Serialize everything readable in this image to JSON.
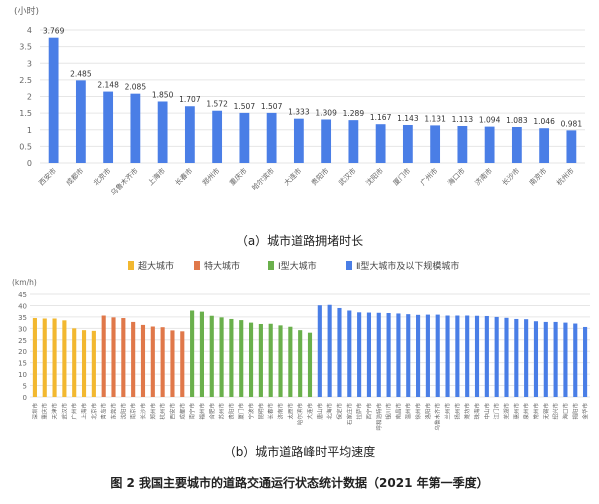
{
  "chart_data": [
    {
      "type": "bar",
      "yunit": "(小时)",
      "ylim": [
        0,
        4
      ],
      "yticks": [
        0,
        0.5,
        1,
        1.5,
        2,
        2.5,
        3,
        3.5,
        4
      ],
      "categories": [
        "西安市",
        "成都市",
        "北京市",
        "乌鲁木齐市",
        "上海市",
        "长春市",
        "郑州市",
        "重庆市",
        "哈尔滨市",
        "大连市",
        "贵阳市",
        "武汉市",
        "沈阳市",
        "厦门市",
        "广州市",
        "海口市",
        "济南市",
        "长沙市",
        "南京市",
        "杭州市"
      ],
      "values": [
        3.769,
        2.485,
        2.148,
        2.085,
        1.85,
        1.707,
        1.572,
        1.507,
        1.507,
        1.333,
        1.309,
        1.289,
        1.167,
        1.143,
        1.131,
        1.113,
        1.094,
        1.083,
        1.046,
        0.981
      ],
      "value_labels": [
        "3.769",
        "2.485",
        "2.148",
        "2.085",
        "1.850",
        "1.707",
        "1.572",
        "1.507",
        "1.507",
        "1.333",
        "1.309",
        "1.289",
        "1.167",
        "1.143",
        "1.131",
        "1.113",
        "1.094",
        "1.083",
        "1.046",
        "0.981"
      ],
      "bar_color": "#4a7ee6",
      "grid": true,
      "caption": "（a）城市道路拥堵时长"
    },
    {
      "type": "bar",
      "yunit": "(km/h)",
      "ylim": [
        0,
        45
      ],
      "yticks": [
        0,
        5,
        10,
        15,
        20,
        25,
        30,
        35,
        40,
        45
      ],
      "legend_position": "top-center",
      "groups": [
        {
          "name": "超大城市",
          "color": "#f2b830",
          "categories": [
            "深圳市",
            "重庆市",
            "天津市",
            "武汉市",
            "广州市",
            "上海市",
            "北京市"
          ],
          "values": [
            34.5,
            34.3,
            34.3,
            33.5,
            30.0,
            29.2,
            28.9
          ]
        },
        {
          "name": "特大城市",
          "color": "#e0784a",
          "categories": [
            "青岛市",
            "东莞市",
            "沈阳市",
            "南京市",
            "长沙市",
            "郑州市",
            "杭州市",
            "西安市",
            "成都市"
          ],
          "values": [
            35.6,
            34.8,
            34.5,
            32.8,
            31.5,
            30.8,
            30.5,
            29.1,
            28.7
          ]
        },
        {
          "name": "Ⅰ型大城市",
          "color": "#6ab04c",
          "categories": [
            "南宁市",
            "福州市",
            "合肥市",
            "苏州市",
            "贵阳市",
            "厦门市",
            "宁波市",
            "昆明市",
            "长春市",
            "济南市",
            "太原市",
            "哈尔滨市",
            "大连市"
          ],
          "values": [
            37.8,
            37.3,
            35.5,
            34.8,
            34.1,
            33.6,
            32.5,
            31.9,
            32.0,
            31.3,
            30.7,
            29.2,
            28.1
          ]
        },
        {
          "name": "Ⅱ型大城市及以下规模城市",
          "color": "#4a7ee6",
          "categories": [
            "唐山市",
            "北海市",
            "保定市",
            "石家庄市",
            "拉萨市",
            "西宁市",
            "呼和浩特市",
            "银川市",
            "南昌市",
            "温州市",
            "徐州市",
            "洛阳市",
            "乌鲁木齐市",
            "兰州市",
            "扬州市",
            "潍坊市",
            "珠海市",
            "中山市",
            "江门市",
            "芜湖市",
            "惠州市",
            "泉州市",
            "常州市",
            "无锡市",
            "绍兴市",
            "海口市",
            "揭阳市",
            "金华市"
          ],
          "values": [
            40.1,
            40.3,
            38.9,
            37.8,
            37.0,
            36.9,
            36.8,
            36.7,
            36.5,
            36.2,
            35.9,
            36.0,
            36.0,
            35.6,
            35.6,
            35.6,
            35.5,
            35.4,
            35.0,
            34.6,
            34.1,
            34.0,
            33.1,
            32.8,
            32.8,
            32.5,
            32.1,
            30.6
          ]
        }
      ],
      "grid": true,
      "caption": "（b）城市道路峰时平均速度"
    }
  ],
  "figure_caption": "图 2  我国主要城市的道路交通运行状态统计数据（2021 年第一季度）"
}
